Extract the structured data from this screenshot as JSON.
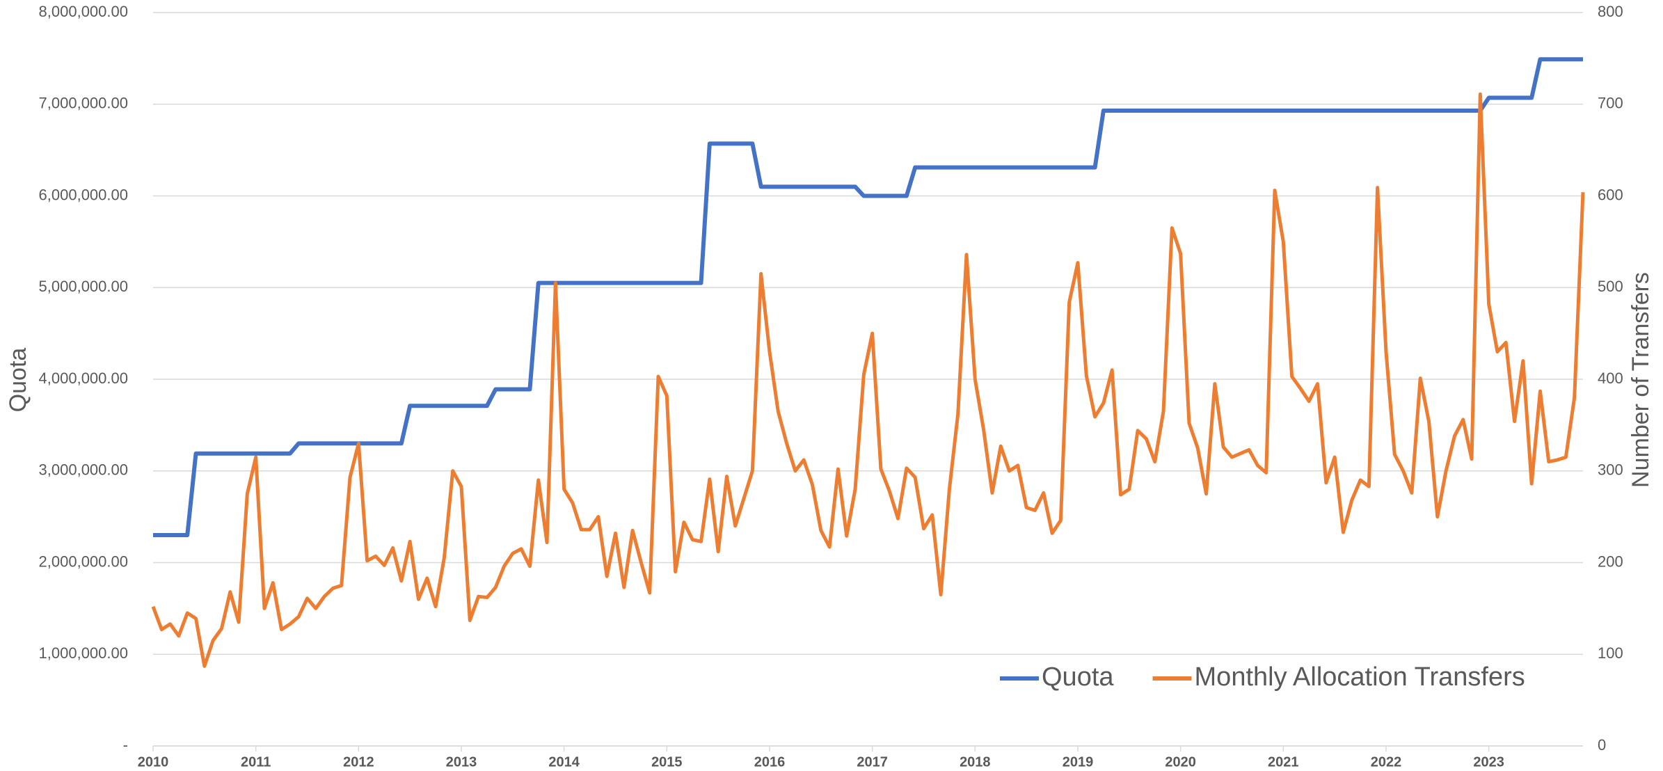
{
  "chart_data": {
    "type": "line",
    "ylabel": "Quota",
    "y2label": "Number of Transfers",
    "categories": [
      "2010",
      null,
      null,
      null,
      null,
      null,
      null,
      null,
      null,
      null,
      null,
      null,
      "2011",
      null,
      null,
      null,
      null,
      null,
      null,
      null,
      null,
      null,
      null,
      null,
      "2012",
      null,
      null,
      null,
      null,
      null,
      null,
      null,
      null,
      null,
      null,
      null,
      "2013",
      null,
      null,
      null,
      null,
      null,
      null,
      null,
      null,
      null,
      null,
      null,
      "2014",
      null,
      null,
      null,
      null,
      null,
      null,
      null,
      null,
      null,
      null,
      null,
      "2015",
      null,
      null,
      null,
      null,
      null,
      null,
      null,
      null,
      null,
      null,
      null,
      "2016",
      null,
      null,
      null,
      null,
      null,
      null,
      null,
      null,
      null,
      null,
      null,
      "2017",
      null,
      null,
      null,
      null,
      null,
      null,
      null,
      null,
      null,
      null,
      null,
      "2018",
      null,
      null,
      null,
      null,
      null,
      null,
      null,
      null,
      null,
      null,
      null,
      "2019",
      null,
      null,
      null,
      null,
      null,
      null,
      null,
      null,
      null,
      null,
      null,
      "2020",
      null,
      null,
      null,
      null,
      null,
      null,
      null,
      null,
      null,
      null,
      null,
      "2021",
      null,
      null,
      null,
      null,
      null,
      null,
      null,
      null,
      null,
      null,
      null,
      "2022",
      null,
      null,
      null,
      null,
      null,
      null,
      null,
      null,
      null,
      null,
      null,
      "2023",
      null,
      null,
      null,
      null,
      null,
      null,
      null,
      null,
      null,
      null,
      null
    ],
    "series": [
      {
        "name": "Quota",
        "color": "#4472c4",
        "axis": "y",
        "values": [
          2300000,
          2300000,
          2300000,
          2300000,
          2300000,
          3190000,
          3190000,
          3190000,
          3190000,
          3190000,
          3190000,
          3190000,
          3190000,
          3190000,
          3190000,
          3190000,
          3190000,
          3300000,
          3300000,
          3300000,
          3300000,
          3300000,
          3300000,
          3300000,
          3300000,
          3300000,
          3300000,
          3300000,
          3300000,
          3300000,
          3710000,
          3710000,
          3710000,
          3710000,
          3710000,
          3710000,
          3710000,
          3710000,
          3710000,
          3710000,
          3890000,
          3890000,
          3890000,
          3890000,
          3890000,
          5050000,
          5050000,
          5050000,
          5050000,
          5050000,
          5050000,
          5050000,
          5050000,
          5050000,
          5050000,
          5050000,
          5050000,
          5050000,
          5050000,
          5050000,
          5050000,
          5050000,
          5050000,
          5050000,
          5050000,
          6570000,
          6570000,
          6570000,
          6570000,
          6570000,
          6570000,
          6100000,
          6100000,
          6100000,
          6100000,
          6100000,
          6100000,
          6100000,
          6100000,
          6100000,
          6100000,
          6100000,
          6100000,
          6000000,
          6000000,
          6000000,
          6000000,
          6000000,
          6000000,
          6310000,
          6310000,
          6310000,
          6310000,
          6310000,
          6310000,
          6310000,
          6310000,
          6310000,
          6310000,
          6310000,
          6310000,
          6310000,
          6310000,
          6310000,
          6310000,
          6310000,
          6310000,
          6310000,
          6310000,
          6310000,
          6310000,
          6930000,
          6930000,
          6930000,
          6930000,
          6930000,
          6930000,
          6930000,
          6930000,
          6930000,
          6930000,
          6930000,
          6930000,
          6930000,
          6930000,
          6930000,
          6930000,
          6930000,
          6930000,
          6930000,
          6930000,
          6930000,
          6930000,
          6930000,
          6930000,
          6930000,
          6930000,
          6930000,
          6930000,
          6930000,
          6930000,
          6930000,
          6930000,
          6930000,
          6930000,
          6930000,
          6930000,
          6930000,
          6930000,
          6930000,
          6930000,
          6930000,
          6930000,
          6930000,
          6930000,
          6930000,
          7070000,
          7070000,
          7070000,
          7070000,
          7070000,
          7070000,
          7490000,
          7490000,
          7490000,
          7490000,
          7490000,
          7490000
        ]
      },
      {
        "name": "Monthly Allocation Transfers",
        "color": "#ed7d31",
        "axis": "y2",
        "values": [
          152,
          127,
          133,
          120,
          145,
          139,
          87,
          115,
          128,
          168,
          135,
          275,
          315,
          150,
          178,
          127,
          133,
          141,
          161,
          150,
          163,
          172,
          175,
          293,
          330,
          202,
          207,
          197,
          216,
          180,
          223,
          160,
          183,
          152,
          205,
          300,
          283,
          137,
          163,
          162,
          173,
          196,
          210,
          215,
          196,
          290,
          222,
          505,
          280,
          265,
          236,
          236,
          250,
          185,
          232,
          173,
          235,
          200,
          167,
          403,
          382,
          190,
          244,
          225,
          223,
          291,
          212,
          294,
          240,
          270,
          300,
          515,
          430,
          365,
          330,
          300,
          312,
          285,
          235,
          217,
          302,
          229,
          280,
          405,
          450,
          302,
          278,
          248,
          303,
          293,
          237,
          252,
          165,
          280,
          362,
          536,
          400,
          345,
          276,
          327,
          300,
          306,
          260,
          257,
          276,
          232,
          246,
          484,
          527,
          404,
          359,
          374,
          410,
          274,
          280,
          344,
          335,
          310,
          365,
          565,
          537,
          352,
          325,
          275,
          395,
          326,
          315,
          319,
          323,
          306,
          298,
          606,
          550,
          403,
          390,
          376,
          395,
          287,
          315,
          233,
          268,
          290,
          283,
          609,
          430,
          318,
          300,
          276,
          401,
          354,
          250,
          300,
          338,
          356,
          313,
          711,
          482,
          430,
          440,
          354,
          420,
          286,
          387,
          310,
          312,
          315,
          380,
          604
        ]
      }
    ],
    "ylim": [
      0,
      8000000
    ],
    "yticks": [
      {
        "value": 0,
        "label": "-"
      },
      {
        "value": 1000000,
        "label": "1,000,000.00"
      },
      {
        "value": 2000000,
        "label": "2,000,000.00"
      },
      {
        "value": 3000000,
        "label": "3,000,000.00"
      },
      {
        "value": 4000000,
        "label": "4,000,000.00"
      },
      {
        "value": 5000000,
        "label": "5,000,000.00"
      },
      {
        "value": 6000000,
        "label": "6,000,000.00"
      },
      {
        "value": 7000000,
        "label": "7,000,000.00"
      },
      {
        "value": 8000000,
        "label": "8,000,000.00"
      }
    ],
    "y2lim": [
      0,
      800
    ],
    "y2ticks": [
      0,
      100,
      200,
      300,
      400,
      500,
      600,
      700,
      800
    ],
    "grid": true,
    "legend": "lower right"
  }
}
